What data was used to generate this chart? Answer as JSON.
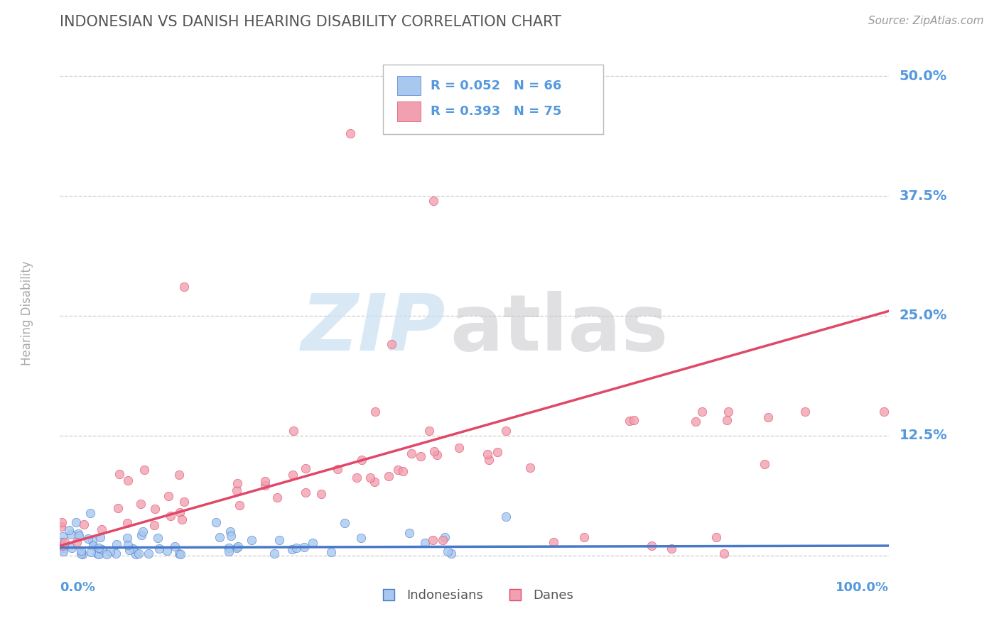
{
  "title": "INDONESIAN VS DANISH HEARING DISABILITY CORRELATION CHART",
  "source": "Source: ZipAtlas.com",
  "ylabel": "Hearing Disability",
  "legend_label1": "Indonesians",
  "legend_label2": "Danes",
  "xlim": [
    0.0,
    1.0
  ],
  "ylim": [
    -0.015,
    0.52
  ],
  "yticks": [
    0.0,
    0.125,
    0.25,
    0.375,
    0.5
  ],
  "ytick_labels": [
    "",
    "12.5%",
    "25.0%",
    "37.5%",
    "50.0%"
  ],
  "color_indonesian": "#a8c8f0",
  "color_danish": "#f0a0b0",
  "color_line_indonesian": "#4878c8",
  "color_line_danish": "#e04868",
  "background_color": "#ffffff",
  "title_color": "#555555",
  "axis_label_color": "#5599dd",
  "watermark_zip_color": "#c8dff0",
  "watermark_atlas_color": "#c8c8cc"
}
